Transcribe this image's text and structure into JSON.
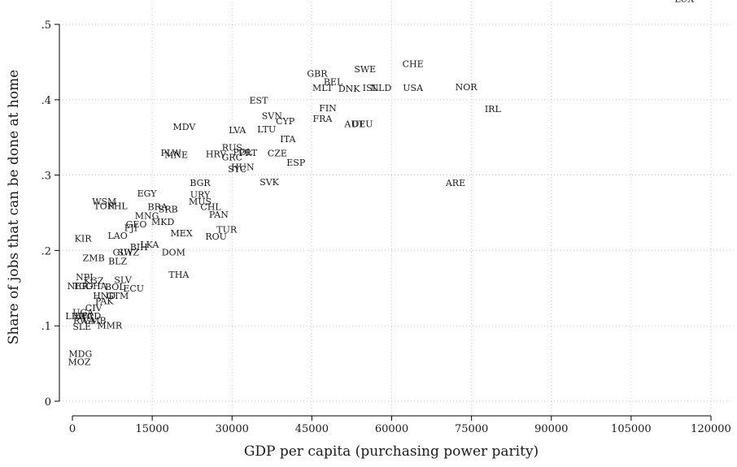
{
  "chart_data": {
    "type": "scatter",
    "title": "",
    "xlabel": "GDP per capita (purchasing power parity)",
    "ylabel": "Share of jobs that can be done at home",
    "xlim": [
      0,
      120000
    ],
    "ylim": [
      0,
      0.5
    ],
    "x_ticks": [
      0,
      15000,
      30000,
      45000,
      60000,
      75000,
      90000,
      105000,
      120000
    ],
    "x_tick_labels": [
      "0",
      "15000",
      "30000",
      "45000",
      "60000",
      "75000",
      "90000",
      "105000",
      "120000"
    ],
    "y_ticks": [
      0,
      0.1,
      0.2,
      0.3,
      0.4,
      0.5
    ],
    "y_tick_labels": [
      "0",
      ".1",
      ".2",
      ".3",
      ".4",
      ".5"
    ],
    "grid": true,
    "marker": "country code label",
    "points": [
      {
        "label": "LUX",
        "x": 115000,
        "y": 0.534
      },
      {
        "label": "CHE",
        "x": 64000,
        "y": 0.448
      },
      {
        "label": "SWE",
        "x": 55000,
        "y": 0.441
      },
      {
        "label": "GBR",
        "x": 46000,
        "y": 0.435
      },
      {
        "label": "BEL",
        "x": 49000,
        "y": 0.424
      },
      {
        "label": "MLT",
        "x": 47000,
        "y": 0.416
      },
      {
        "label": "DNK",
        "x": 52000,
        "y": 0.415
      },
      {
        "label": "ISL",
        "x": 56000,
        "y": 0.416
      },
      {
        "label": "NLD",
        "x": 58000,
        "y": 0.416
      },
      {
        "label": "USA",
        "x": 64000,
        "y": 0.416
      },
      {
        "label": "NOR",
        "x": 74000,
        "y": 0.417
      },
      {
        "label": "IRL",
        "x": 79000,
        "y": 0.388
      },
      {
        "label": "EST",
        "x": 35000,
        "y": 0.399
      },
      {
        "label": "FIN",
        "x": 48000,
        "y": 0.389
      },
      {
        "label": "SVN",
        "x": 37500,
        "y": 0.379
      },
      {
        "label": "FRA",
        "x": 47000,
        "y": 0.375
      },
      {
        "label": "CYP",
        "x": 40000,
        "y": 0.372
      },
      {
        "label": "AUT",
        "x": 53000,
        "y": 0.368
      },
      {
        "label": "DEU",
        "x": 54500,
        "y": 0.368
      },
      {
        "label": "LTU",
        "x": 36500,
        "y": 0.361
      },
      {
        "label": "MDV",
        "x": 21000,
        "y": 0.364
      },
      {
        "label": "LVA",
        "x": 31000,
        "y": 0.36
      },
      {
        "label": "ITA",
        "x": 40500,
        "y": 0.348
      },
      {
        "label": "RUS",
        "x": 30000,
        "y": 0.337
      },
      {
        "label": "POL",
        "x": 32000,
        "y": 0.331
      },
      {
        "label": "PRT",
        "x": 33000,
        "y": 0.33
      },
      {
        "label": "CZE",
        "x": 38500,
        "y": 0.329
      },
      {
        "label": "PLW",
        "x": 18500,
        "y": 0.33
      },
      {
        "label": "MNE",
        "x": 19500,
        "y": 0.327
      },
      {
        "label": "HRV",
        "x": 27000,
        "y": 0.328
      },
      {
        "label": "GRC",
        "x": 30000,
        "y": 0.324
      },
      {
        "label": "ESP",
        "x": 42000,
        "y": 0.317
      },
      {
        "label": "HUN",
        "x": 32000,
        "y": 0.311
      },
      {
        "label": "SYC",
        "x": 31000,
        "y": 0.308
      },
      {
        "label": "SVK",
        "x": 37000,
        "y": 0.291
      },
      {
        "label": "ARE",
        "x": 72000,
        "y": 0.29
      },
      {
        "label": "BGR",
        "x": 24000,
        "y": 0.29
      },
      {
        "label": "EGY",
        "x": 14000,
        "y": 0.276
      },
      {
        "label": "URY",
        "x": 24000,
        "y": 0.274
      },
      {
        "label": "WSM",
        "x": 6000,
        "y": 0.265
      },
      {
        "label": "MUS",
        "x": 24000,
        "y": 0.265
      },
      {
        "label": "TON",
        "x": 6000,
        "y": 0.259
      },
      {
        "label": "PHL",
        "x": 8500,
        "y": 0.259
      },
      {
        "label": "BRA",
        "x": 16000,
        "y": 0.258
      },
      {
        "label": "CHL",
        "x": 26000,
        "y": 0.258
      },
      {
        "label": "SRB",
        "x": 18000,
        "y": 0.255
      },
      {
        "label": "PAN",
        "x": 27500,
        "y": 0.248
      },
      {
        "label": "MNG",
        "x": 14000,
        "y": 0.246
      },
      {
        "label": "MKD",
        "x": 17000,
        "y": 0.238
      },
      {
        "label": "GEO",
        "x": 12000,
        "y": 0.235
      },
      {
        "label": "FJI",
        "x": 11000,
        "y": 0.23
      },
      {
        "label": "TUR",
        "x": 29000,
        "y": 0.228
      },
      {
        "label": "MEX",
        "x": 20500,
        "y": 0.223
      },
      {
        "label": "LAO",
        "x": 8500,
        "y": 0.22
      },
      {
        "label": "ROU",
        "x": 27000,
        "y": 0.219
      },
      {
        "label": "KIR",
        "x": 2000,
        "y": 0.216
      },
      {
        "label": "LKA",
        "x": 14500,
        "y": 0.208
      },
      {
        "label": "BIH",
        "x": 12500,
        "y": 0.205
      },
      {
        "label": "DOM",
        "x": 19000,
        "y": 0.198
      },
      {
        "label": "GUY",
        "x": 9500,
        "y": 0.198
      },
      {
        "label": "SWZ",
        "x": 10500,
        "y": 0.198
      },
      {
        "label": "ZMB",
        "x": 4000,
        "y": 0.19
      },
      {
        "label": "BLZ",
        "x": 8500,
        "y": 0.186
      },
      {
        "label": "THA",
        "x": 20000,
        "y": 0.168
      },
      {
        "label": "NPL",
        "x": 2500,
        "y": 0.165
      },
      {
        "label": "KGZ",
        "x": 4000,
        "y": 0.16
      },
      {
        "label": "SLV",
        "x": 9500,
        "y": 0.161
      },
      {
        "label": "NER",
        "x": 1000,
        "y": 0.153
      },
      {
        "label": "TGO",
        "x": 2000,
        "y": 0.153
      },
      {
        "label": "GHA",
        "x": 4500,
        "y": 0.153
      },
      {
        "label": "BOL",
        "x": 8000,
        "y": 0.152
      },
      {
        "label": "ECU",
        "x": 11500,
        "y": 0.15
      },
      {
        "label": "HND",
        "x": 6000,
        "y": 0.14
      },
      {
        "label": "GTM",
        "x": 8500,
        "y": 0.14
      },
      {
        "label": "PAK",
        "x": 6000,
        "y": 0.133
      },
      {
        "label": "CIV",
        "x": 4000,
        "y": 0.124
      },
      {
        "label": "UGA",
        "x": 2000,
        "y": 0.118
      },
      {
        "label": "LBR",
        "x": 500,
        "y": 0.113
      },
      {
        "label": "BFA",
        "x": 2200,
        "y": 0.113
      },
      {
        "label": "TCD",
        "x": 3500,
        "y": 0.113
      },
      {
        "label": "RWA",
        "x": 2200,
        "y": 0.107
      },
      {
        "label": "GMB",
        "x": 4200,
        "y": 0.107
      },
      {
        "label": "MMR",
        "x": 7000,
        "y": 0.101
      },
      {
        "label": "SLE",
        "x": 1800,
        "y": 0.099
      },
      {
        "label": "MDG",
        "x": 1500,
        "y": 0.063
      },
      {
        "label": "MOZ",
        "x": 1300,
        "y": 0.052
      }
    ]
  }
}
